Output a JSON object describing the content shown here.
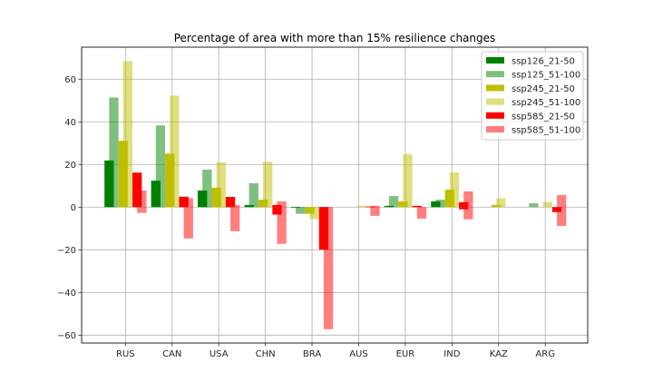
{
  "chart_data": {
    "type": "bar",
    "title": "Percentage of area with more than 15% resilience changes",
    "xlabel": "",
    "ylabel": "",
    "categories": [
      "RUS",
      "CAN",
      "USA",
      "CHN",
      "BRA",
      "AUS",
      "EUR",
      "IND",
      "KAZ",
      "ARG"
    ],
    "ylim": [
      -63.7,
      75.0
    ],
    "yticks": [
      -60,
      -40,
      -20,
      0,
      20,
      40,
      60
    ],
    "ytick_labels": [
      "−60",
      "−40",
      "−20",
      "0",
      "20",
      "40",
      "60"
    ],
    "grid": true,
    "legend_position": "top-right",
    "series": [
      {
        "name": "ssp126_21-50",
        "color": "#008000",
        "alpha": 1.0,
        "pos": [
          21.9,
          12.4,
          7.8,
          1.0,
          0.0,
          0.0,
          0.6,
          2.7,
          0.0,
          0.0
        ],
        "neg": [
          0,
          0,
          0,
          0,
          -0.2,
          0,
          0,
          0,
          0,
          0
        ]
      },
      {
        "name": "ssp125_51-100",
        "color": "#008000",
        "alpha": 0.5,
        "pos": [
          51.4,
          38.3,
          17.6,
          11.2,
          0.0,
          0.0,
          5.2,
          3.5,
          0.0,
          1.8
        ],
        "neg": [
          0,
          0,
          0,
          0,
          -3.1,
          0,
          0,
          0,
          0,
          0
        ]
      },
      {
        "name": "ssp245_21-50",
        "color": "#bfbf00",
        "alpha": 1.0,
        "pos": [
          31.1,
          25.1,
          9.1,
          3.5,
          0.0,
          0.0,
          2.7,
          8.2,
          1.0,
          0.0
        ],
        "neg": [
          0,
          0,
          0,
          0,
          -3.1,
          0,
          0,
          0,
          0,
          0
        ]
      },
      {
        "name": "ssp245_51-100",
        "color": "#bfbf00",
        "alpha": 0.5,
        "pos": [
          68.5,
          52.3,
          21.0,
          21.3,
          0.0,
          0.6,
          24.8,
          16.3,
          4.2,
          2.4
        ],
        "neg": [
          0,
          0,
          0,
          0,
          -5.6,
          0,
          0,
          0,
          0,
          0
        ]
      },
      {
        "name": "ssp585_21-50",
        "color": "#ff0000",
        "alpha": 1.0,
        "pos": [
          16.2,
          4.9,
          4.8,
          1.0,
          0.0,
          0.3,
          0.6,
          2.3,
          0.0,
          0.0
        ],
        "neg": [
          0,
          0,
          0,
          -3.5,
          -19.9,
          0,
          0,
          -1.0,
          0,
          -2.3
        ]
      },
      {
        "name": "ssp585_51-100",
        "color": "#ff0000",
        "alpha": 0.5,
        "pos": [
          7.8,
          4.2,
          1.0,
          2.7,
          0.0,
          0.6,
          0.0,
          7.4,
          0.0,
          5.7
        ],
        "neg": [
          -2.7,
          -14.7,
          -11.3,
          -17.2,
          -57.2,
          -4.1,
          -5.4,
          -5.7,
          0,
          -8.8
        ]
      }
    ],
    "bar_offsets": [
      -0.45,
      -0.35,
      -0.15,
      -0.05,
      0.15,
      0.25
    ],
    "bar_width": 0.2
  }
}
